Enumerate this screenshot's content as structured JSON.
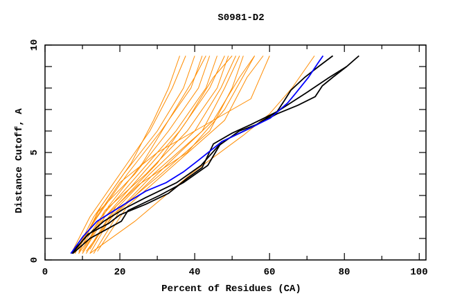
{
  "chart_data": {
    "type": "line",
    "title": "S0981-D2",
    "xlabel": "Percent of Residues (CA)",
    "ylabel": "Distance Cutoff, A",
    "xlim": [
      0,
      101.8
    ],
    "ylim": [
      0,
      10
    ],
    "x_tick_labels": [
      "0",
      "20",
      "40",
      "60",
      "80",
      "100"
    ],
    "y_tick_labels": [
      "0",
      "5",
      "10"
    ],
    "colors": {
      "other": "#ff8c00",
      "highlight": "#0000ff",
      "reference": "#000000"
    },
    "series": [
      {
        "name": "orange-1",
        "color": "other",
        "points": [
          [
            7,
            0.3
          ],
          [
            12,
            2
          ],
          [
            20,
            4
          ],
          [
            28,
            6
          ],
          [
            34,
            8
          ],
          [
            37.6,
            9.5
          ]
        ]
      },
      {
        "name": "orange-2",
        "color": "other",
        "points": [
          [
            8,
            0.3
          ],
          [
            13,
            2
          ],
          [
            21,
            4
          ],
          [
            30,
            6
          ],
          [
            37,
            8
          ],
          [
            40,
            9.5
          ]
        ]
      },
      {
        "name": "orange-3",
        "color": "other",
        "points": [
          [
            8,
            0.4
          ],
          [
            14,
            2
          ],
          [
            22,
            4
          ],
          [
            31,
            6
          ],
          [
            39,
            8
          ],
          [
            42,
            9.5
          ]
        ]
      },
      {
        "name": "orange-4",
        "color": "other",
        "points": [
          [
            9,
            0.3
          ],
          [
            14,
            2.2
          ],
          [
            24,
            4
          ],
          [
            33,
            6
          ],
          [
            41,
            8
          ],
          [
            44,
            9.5
          ]
        ]
      },
      {
        "name": "orange-5",
        "color": "other",
        "points": [
          [
            9,
            0.4
          ],
          [
            15,
            2
          ],
          [
            25,
            4
          ],
          [
            35,
            6
          ],
          [
            43,
            8
          ],
          [
            46,
            9.5
          ]
        ]
      },
      {
        "name": "orange-6",
        "color": "other",
        "points": [
          [
            10,
            0.3
          ],
          [
            16,
            2
          ],
          [
            26,
            4
          ],
          [
            36,
            6
          ],
          [
            44,
            8
          ],
          [
            48,
            9.5
          ]
        ]
      },
      {
        "name": "orange-7",
        "color": "other",
        "points": [
          [
            10,
            0.4
          ],
          [
            16,
            2.3
          ],
          [
            27,
            4
          ],
          [
            38,
            6
          ],
          [
            46,
            8
          ],
          [
            49,
            9.5
          ]
        ]
      },
      {
        "name": "orange-8",
        "color": "other",
        "points": [
          [
            11,
            0.3
          ],
          [
            17,
            2
          ],
          [
            28,
            4
          ],
          [
            40,
            6
          ],
          [
            47,
            8
          ],
          [
            51,
            9.5
          ]
        ]
      },
      {
        "name": "orange-9",
        "color": "other",
        "points": [
          [
            11,
            0.4
          ],
          [
            18,
            2
          ],
          [
            29,
            4
          ],
          [
            42,
            6
          ],
          [
            48,
            8
          ],
          [
            52,
            9.5
          ]
        ]
      },
      {
        "name": "orange-10",
        "color": "other",
        "points": [
          [
            12,
            0.3
          ],
          [
            18,
            2.1
          ],
          [
            31,
            4
          ],
          [
            44,
            6
          ],
          [
            50,
            8
          ],
          [
            53,
            9.5
          ]
        ]
      },
      {
        "name": "orange-11",
        "color": "other",
        "points": [
          [
            9,
            0.5
          ],
          [
            15,
            2.5
          ],
          [
            23,
            4.5
          ],
          [
            29,
            6.5
          ],
          [
            33,
            8
          ],
          [
            36,
            9.5
          ]
        ]
      },
      {
        "name": "orange-12",
        "color": "other",
        "points": [
          [
            10,
            0.3
          ],
          [
            17,
            2.5
          ],
          [
            26,
            4.5
          ],
          [
            33,
            6.5
          ],
          [
            40,
            8.5
          ],
          [
            43,
            9.5
          ]
        ]
      },
      {
        "name": "orange-13",
        "color": "other",
        "points": [
          [
            12,
            0.5
          ],
          [
            19,
            2.5
          ],
          [
            30,
            4.5
          ],
          [
            38,
            6.5
          ],
          [
            45,
            8.5
          ],
          [
            50,
            9.5
          ]
        ]
      },
      {
        "name": "orange-14",
        "color": "other",
        "points": [
          [
            13,
            0.3
          ],
          [
            20,
            2.3
          ],
          [
            33,
            4.5
          ],
          [
            45,
            6.5
          ],
          [
            52,
            8.5
          ],
          [
            56,
            9.5
          ]
        ]
      },
      {
        "name": "orange-15",
        "color": "other",
        "points": [
          [
            14,
            0.4
          ],
          [
            22,
            2.5
          ],
          [
            35,
            4.5
          ],
          [
            48,
            6.5
          ],
          [
            54,
            8.5
          ],
          [
            58.3,
            9.5
          ]
        ]
      },
      {
        "name": "orange-16",
        "color": "other",
        "points": [
          [
            12,
            0.3
          ],
          [
            24,
            1.8
          ],
          [
            39,
            4
          ],
          [
            53,
            5.8
          ],
          [
            60,
            6.8
          ],
          [
            66,
            8
          ],
          [
            72,
            9.5
          ]
        ]
      },
      {
        "name": "orange-17",
        "color": "other",
        "points": [
          [
            8,
            0.3
          ],
          [
            13,
            1.8
          ],
          [
            20,
            3.6
          ],
          [
            30,
            5
          ],
          [
            45,
            6.5
          ],
          [
            55,
            7.5
          ],
          [
            60,
            9.5
          ]
        ]
      },
      {
        "name": "orange-18",
        "color": "other",
        "points": [
          [
            9,
            0.3
          ],
          [
            16,
            2
          ],
          [
            25,
            3.5
          ],
          [
            38,
            5
          ],
          [
            48,
            7
          ],
          [
            56,
            9.5
          ]
        ]
      },
      {
        "name": "black-1",
        "color": "reference",
        "points": [
          [
            6.9,
            0.3
          ],
          [
            11.1,
            1.1
          ],
          [
            15.7,
            1.8
          ],
          [
            21.3,
            2.4
          ],
          [
            26.9,
            2.9
          ],
          [
            35.2,
            3.6
          ],
          [
            41.7,
            4.4
          ],
          [
            46.3,
            5.3
          ],
          [
            51.9,
            6.0
          ],
          [
            56.5,
            6.3
          ],
          [
            62,
            6.9
          ],
          [
            63.9,
            7.4
          ],
          [
            65.7,
            7.9
          ],
          [
            69.4,
            8.5
          ],
          [
            73.1,
            9.0
          ],
          [
            76.9,
            9.5
          ]
        ]
      },
      {
        "name": "black-2",
        "color": "reference",
        "points": [
          [
            7.4,
            0.3
          ],
          [
            12,
            1.0
          ],
          [
            20.4,
            1.8
          ],
          [
            22.2,
            2.3
          ],
          [
            30.6,
            3.0
          ],
          [
            37,
            3.6
          ],
          [
            43.5,
            4.4
          ],
          [
            47.2,
            5.5
          ],
          [
            55.6,
            6.2
          ],
          [
            62,
            6.8
          ],
          [
            67.6,
            7.2
          ],
          [
            72.2,
            7.6
          ],
          [
            74.1,
            8.1
          ],
          [
            76.9,
            8.5
          ],
          [
            80.6,
            9.0
          ],
          [
            83.9,
            9.5
          ]
        ]
      },
      {
        "name": "black-3",
        "color": "reference",
        "points": [
          [
            7.2,
            0.3
          ],
          [
            11.5,
            1.2
          ],
          [
            17,
            1.7
          ],
          [
            20,
            2.1
          ],
          [
            27,
            2.6
          ],
          [
            33,
            3.1
          ],
          [
            38,
            3.8
          ],
          [
            42,
            4.3
          ],
          [
            45,
            5.4
          ],
          [
            50,
            5.9
          ],
          [
            55,
            6.3
          ],
          [
            62,
            6.9
          ],
          [
            70,
            7.8
          ],
          [
            76,
            8.5
          ],
          [
            80.6,
            9.0
          ]
        ]
      },
      {
        "name": "blue",
        "color": "highlight",
        "points": [
          [
            6.9,
            0.3
          ],
          [
            10.2,
            1.1
          ],
          [
            13.9,
            1.8
          ],
          [
            18.5,
            2.3
          ],
          [
            22.2,
            2.7
          ],
          [
            26.9,
            3.2
          ],
          [
            32.4,
            3.6
          ],
          [
            37,
            4.1
          ],
          [
            40.7,
            4.6
          ],
          [
            47.2,
            5.5
          ],
          [
            52.8,
            5.97
          ],
          [
            60.2,
            6.6
          ],
          [
            64.8,
            7.3
          ],
          [
            66.7,
            7.7
          ],
          [
            70.4,
            8.5
          ],
          [
            73.1,
            9.2
          ],
          [
            74.3,
            9.5
          ]
        ]
      }
    ]
  }
}
